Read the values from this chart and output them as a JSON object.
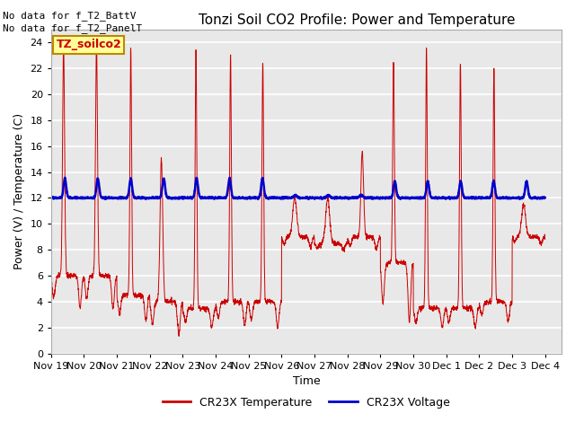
{
  "title": "Tonzi Soil CO2 Profile: Power and Temperature",
  "ylabel": "Power (V) / Temperature (C)",
  "xlabel": "Time",
  "annotations": [
    "No data for f_T2_BattV",
    "No data for f_T2_PanelT"
  ],
  "legend_label": "TZ_soilco2",
  "legend_entries": [
    "CR23X Temperature",
    "CR23X Voltage"
  ],
  "ylim": [
    0,
    25
  ],
  "yticks": [
    0,
    2,
    4,
    6,
    8,
    10,
    12,
    14,
    16,
    18,
    20,
    22,
    24
  ],
  "plot_bg_color": "#e8e8e8",
  "fig_bg_color": "#ffffff",
  "grid_color": "#ffffff",
  "temp_color": "#cc0000",
  "volt_color": "#0000cc",
  "title_fontsize": 11,
  "tick_fontsize": 8,
  "label_fontsize": 9,
  "annot_fontsize": 8
}
